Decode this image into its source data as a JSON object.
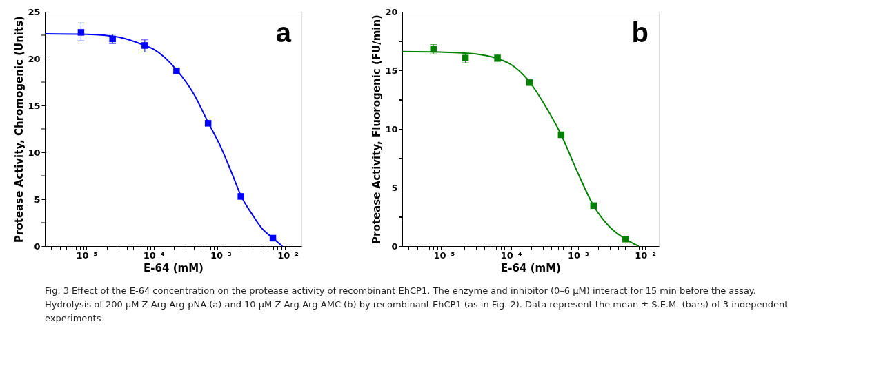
{
  "chart_data": [
    {
      "type": "scatter",
      "xlabel": "E-64 (mM)",
      "ylabel": "Protease  Activity, Chromogenic (Units)",
      "log": "x",
      "grid": false,
      "line_style": "solid",
      "xlim": [
        2.4e-06,
        0.016
      ],
      "xticks": [
        {
          "value": 3e-06,
          "label": null
        },
        {
          "value": 4e-06,
          "label": null
        },
        {
          "value": 5e-06,
          "label": null
        },
        {
          "value": 6e-06,
          "label": null
        },
        {
          "value": 7e-06,
          "label": null
        },
        {
          "value": 8e-06,
          "label": null
        },
        {
          "value": 9e-06,
          "label": null
        },
        {
          "value": 1e-05,
          "label": "10⁻⁵"
        },
        {
          "value": 2e-05,
          "label": null
        },
        {
          "value": 3e-05,
          "label": null
        },
        {
          "value": 4e-05,
          "label": null
        },
        {
          "value": 5e-05,
          "label": null
        },
        {
          "value": 6e-05,
          "label": null
        },
        {
          "value": 7e-05,
          "label": null
        },
        {
          "value": 8e-05,
          "label": null
        },
        {
          "value": 9e-05,
          "label": null
        },
        {
          "value": 0.0001,
          "label": "10⁻⁴"
        },
        {
          "value": 0.0002,
          "label": null
        },
        {
          "value": 0.0003,
          "label": null
        },
        {
          "value": 0.0004,
          "label": null
        },
        {
          "value": 0.0005,
          "label": null
        },
        {
          "value": 0.0006,
          "label": null
        },
        {
          "value": 0.0007,
          "label": null
        },
        {
          "value": 0.0008,
          "label": null
        },
        {
          "value": 0.0009,
          "label": null
        },
        {
          "value": 0.001,
          "label": "10⁻³"
        },
        {
          "value": 0.002,
          "label": null
        },
        {
          "value": 0.003,
          "label": null
        },
        {
          "value": 0.004,
          "label": null
        },
        {
          "value": 0.005,
          "label": null
        },
        {
          "value": 0.006,
          "label": null
        },
        {
          "value": 0.007,
          "label": null
        },
        {
          "value": 0.008,
          "label": null
        },
        {
          "value": 0.009,
          "label": null
        },
        {
          "value": 0.01,
          "label": "10⁻²"
        }
      ],
      "ylim": [
        0,
        25
      ],
      "yticks": [
        0,
        {
          "value": 2.5,
          "label": null
        },
        5,
        {
          "value": 7.5,
          "label": null
        },
        10,
        {
          "value": 12.5,
          "label": null
        },
        15,
        {
          "value": 17.5,
          "label": null
        },
        20,
        {
          "value": 22.5,
          "label": null
        },
        25
      ],
      "series": [
        {
          "marker": "square",
          "color": "#0000ff",
          "x": [
            8.3e-06,
            2.45e-05,
            7.4e-05,
            0.00022,
            0.00065,
            0.002,
            0.006
          ],
          "values": [
            22.8,
            22.1,
            21.4,
            18.7,
            13.1,
            5.3,
            0.85
          ],
          "errors": [
            [
              21.9,
              23.8
            ],
            [
              21.6,
              22.6
            ],
            [
              20.7,
              22.0
            ],
            null,
            null,
            null,
            null
          ]
        },
        {
          "type": "line",
          "marker": "none",
          "color": "#0000ff",
          "x": [
            2.4e-06,
            1e-05,
            3e-05,
            7.4e-05,
            0.0001,
            0.00022,
            0.0004,
            0.00065,
            0.001,
            0.0015,
            0.002,
            0.003,
            0.004,
            0.006,
            0.0083
          ],
          "values": [
            22.65,
            22.6,
            22.3,
            21.4,
            21.0,
            18.8,
            16.2,
            13.2,
            10.6,
            7.6,
            5.4,
            3.3,
            2.0,
            0.85,
            0
          ]
        }
      ],
      "annotations": [
        "a"
      ]
    },
    {
      "type": "scatter",
      "xlabel": "E-64 (mM)",
      "ylabel": "Protease Activity, Fluorogenic (FU/min)",
      "log": "x",
      "grid": false,
      "line_style": "solid",
      "xlim": [
        2.4e-06,
        0.016
      ],
      "xticks": [
        {
          "value": 3e-06,
          "label": null
        },
        {
          "value": 4e-06,
          "label": null
        },
        {
          "value": 5e-06,
          "label": null
        },
        {
          "value": 6e-06,
          "label": null
        },
        {
          "value": 7e-06,
          "label": null
        },
        {
          "value": 8e-06,
          "label": null
        },
        {
          "value": 9e-06,
          "label": null
        },
        {
          "value": 1e-05,
          "label": "10⁻⁵"
        },
        {
          "value": 2e-05,
          "label": null
        },
        {
          "value": 3e-05,
          "label": null
        },
        {
          "value": 4e-05,
          "label": null
        },
        {
          "value": 5e-05,
          "label": null
        },
        {
          "value": 6e-05,
          "label": null
        },
        {
          "value": 7e-05,
          "label": null
        },
        {
          "value": 8e-05,
          "label": null
        },
        {
          "value": 9e-05,
          "label": null
        },
        {
          "value": 0.0001,
          "label": "10⁻⁴"
        },
        {
          "value": 0.0002,
          "label": null
        },
        {
          "value": 0.0003,
          "label": null
        },
        {
          "value": 0.0004,
          "label": null
        },
        {
          "value": 0.0005,
          "label": null
        },
        {
          "value": 0.0006,
          "label": null
        },
        {
          "value": 0.0007,
          "label": null
        },
        {
          "value": 0.0008,
          "label": null
        },
        {
          "value": 0.0009,
          "label": null
        },
        {
          "value": 0.001,
          "label": "10⁻³"
        },
        {
          "value": 0.002,
          "label": null
        },
        {
          "value": 0.003,
          "label": null
        },
        {
          "value": 0.004,
          "label": null
        },
        {
          "value": 0.005,
          "label": null
        },
        {
          "value": 0.006,
          "label": null
        },
        {
          "value": 0.007,
          "label": null
        },
        {
          "value": 0.008,
          "label": null
        },
        {
          "value": 0.009,
          "label": null
        },
        {
          "value": 0.01,
          "label": "10⁻²"
        }
      ],
      "ylim": [
        0,
        20
      ],
      "yticks": [
        0,
        {
          "value": 2.5,
          "label": null
        },
        5,
        {
          "value": 7.5,
          "label": null
        },
        10,
        {
          "value": 12.5,
          "label": null
        },
        15,
        {
          "value": 17.5,
          "label": null
        },
        20
      ],
      "series": [
        {
          "marker": "square",
          "color": "#008000",
          "x": [
            7e-06,
            2.1e-05,
            6.3e-05,
            0.00019,
            0.00056,
            0.0017,
            0.0051
          ],
          "values": [
            16.8,
            16.05,
            16.05,
            13.95,
            9.5,
            3.45,
            0.6
          ],
          "errors": [
            [
              16.4,
              17.2
            ],
            [
              15.65,
              16.45
            ],
            [
              15.75,
              16.35
            ],
            null,
            null,
            null,
            null
          ]
        },
        {
          "type": "line",
          "marker": "none",
          "color": "#008000",
          "x": [
            2.4e-06,
            1e-05,
            3e-05,
            6.3e-05,
            0.0001,
            0.00019,
            0.0003,
            0.00056,
            0.001,
            0.0017,
            0.003,
            0.0051,
            0.008
          ],
          "values": [
            16.6,
            16.55,
            16.4,
            16.0,
            15.5,
            14.0,
            12.3,
            9.5,
            6.2,
            3.45,
            1.6,
            0.6,
            0
          ]
        }
      ],
      "annotations": [
        "b",
        "Fig. 3 Effect of the E-64 concentration on the protease activity of recombinant EhCP1. The enzyme and inhibitor (0–6 μM) interact for 15 min before the assay. Hydrolysis of 200 μM Z-Arg-Arg-pNA (a) and 10 μM Z-Arg-Arg-AMC (b) by recombinant EhCP1 (as in Fig. 2). Data represent the mean ± S.E.M. (bars) of 3 independent experiments"
      ]
    }
  ]
}
